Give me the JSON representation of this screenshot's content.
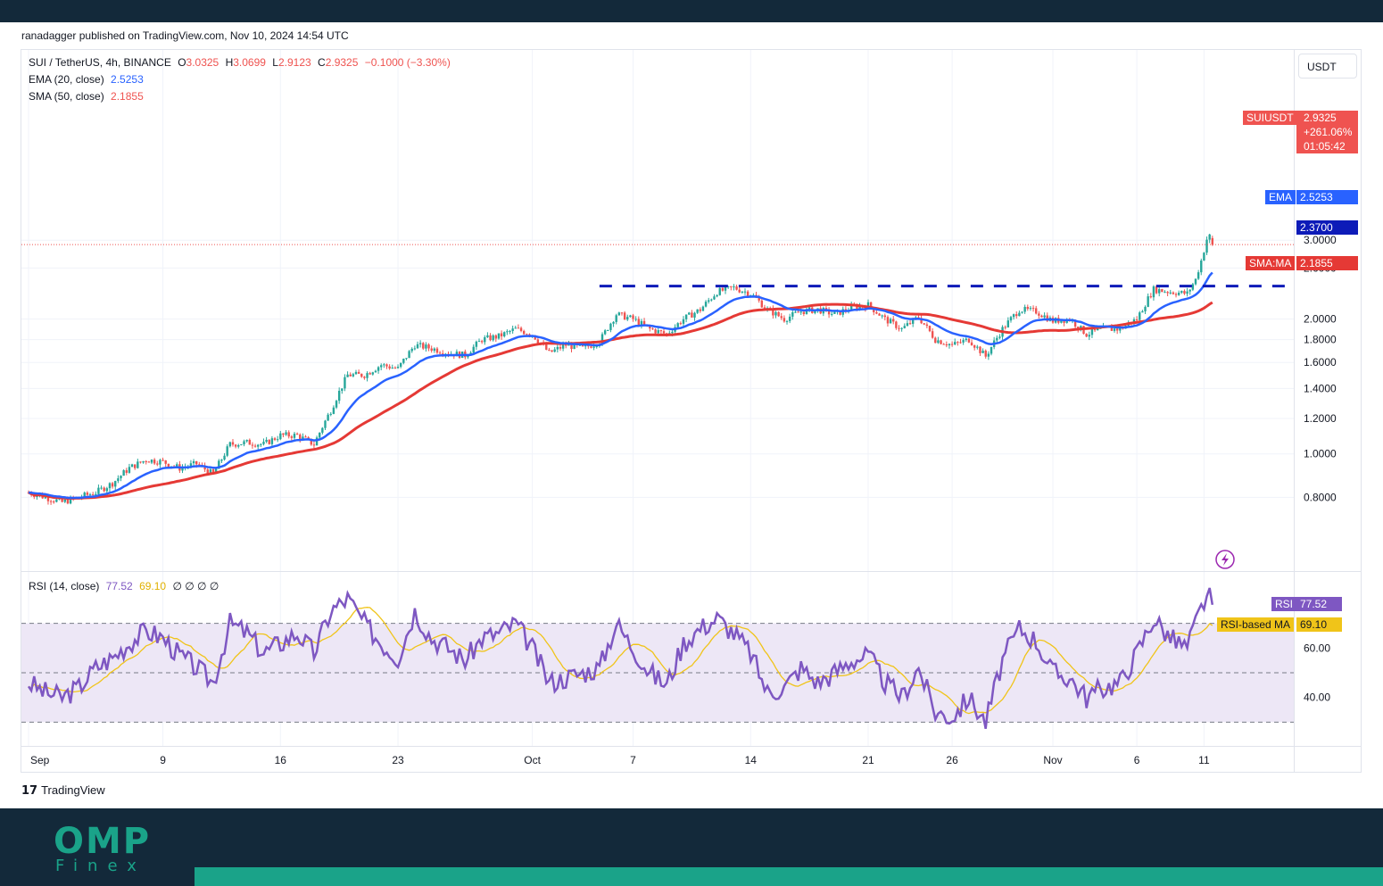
{
  "header": {
    "published": "ranadagger published on TradingView.com, Nov 10, 2024 14:54 UTC"
  },
  "legend": {
    "symbol": "SUI / TetherUS, 4h, BINANCE",
    "o_label": "O",
    "o_value": "3.0325",
    "h_label": "H",
    "h_value": "3.0699",
    "l_label": "L",
    "l_value": "2.9123",
    "c_label": "C",
    "c_value": "2.9325",
    "change": "−0.1000 (−3.30%)",
    "ema_label": "EMA (20, close)",
    "ema_value": "2.5253",
    "sma_label": "SMA (50, close)",
    "sma_value": "2.1855",
    "rsi_label": "RSI (14, close)",
    "rsi_value": "77.52",
    "rsi_ma_value": "69.10",
    "rsi_extra": "∅ ∅ ∅ ∅"
  },
  "axis": {
    "currency": "USDT"
  },
  "tags": {
    "symbol": "SUIUSDT",
    "price": "2.9325",
    "change_pct": "+261.06%",
    "countdown": "01:05:42",
    "ema_name": "EMA",
    "ema_value": "2.5253",
    "level_value": "2.3700",
    "sma_name": "SMA:MA",
    "sma_value": "2.1855",
    "rsi_name": "RSI",
    "rsi_value": "77.52",
    "rsi_ma_name": "RSI-based MA",
    "rsi_ma_value": "69.10"
  },
  "colors": {
    "up": "#26a69a",
    "down": "#ef5350",
    "ema": "#2962ff",
    "sma": "#e53935",
    "resistance": "#0d1bb8",
    "rsi": "#7e57c2",
    "rsi_ma": "#f0c419",
    "rsi_band": "#ede7f6"
  },
  "footer": {
    "tradingview": "TradingView",
    "brand_top": "OMP",
    "brand_bottom": "Finex"
  },
  "chart_data": [
    {
      "type": "candlestick",
      "title": "SUI / TetherUS, 4h, BINANCE",
      "x_ticks": [
        "Sep",
        "9",
        "16",
        "23",
        "Oct",
        "7",
        "14",
        "21",
        "26",
        "Nov",
        "6",
        "11"
      ],
      "x_tick_days": [
        0,
        8,
        15,
        22,
        30,
        36,
        43,
        50,
        55,
        61,
        66,
        70
      ],
      "ylim": [
        0.7,
        3.25
      ],
      "y_ticks": [
        0.8,
        1.0,
        1.2,
        1.4,
        1.6,
        1.8,
        2.0,
        2.6,
        3.0
      ],
      "resistance_level": 2.37,
      "resistance_start_day": 34,
      "close_path": [
        [
          0,
          0.82
        ],
        [
          1,
          0.8
        ],
        [
          2,
          0.78
        ],
        [
          3,
          0.8
        ],
        [
          4,
          0.82
        ],
        [
          5,
          0.86
        ],
        [
          6,
          0.93
        ],
        [
          7,
          0.97
        ],
        [
          8,
          0.96
        ],
        [
          9,
          0.93
        ],
        [
          10,
          0.95
        ],
        [
          11,
          0.9
        ],
        [
          12,
          1.05
        ],
        [
          13,
          1.06
        ],
        [
          14,
          1.05
        ],
        [
          15,
          1.1
        ],
        [
          16,
          1.1
        ],
        [
          17,
          1.05
        ],
        [
          18,
          1.25
        ],
        [
          19,
          1.5
        ],
        [
          20,
          1.5
        ],
        [
          21,
          1.58
        ],
        [
          22,
          1.55
        ],
        [
          23,
          1.75
        ],
        [
          24,
          1.72
        ],
        [
          25,
          1.68
        ],
        [
          26,
          1.66
        ],
        [
          27,
          1.8
        ],
        [
          28,
          1.83
        ],
        [
          29,
          1.9
        ],
        [
          30,
          1.85
        ],
        [
          31,
          1.68
        ],
        [
          32,
          1.75
        ],
        [
          33,
          1.72
        ],
        [
          34,
          1.78
        ],
        [
          35,
          2.05
        ],
        [
          36,
          2.0
        ],
        [
          37,
          1.9
        ],
        [
          38,
          1.85
        ],
        [
          39,
          2.0
        ],
        [
          40,
          2.1
        ],
        [
          41,
          2.3
        ],
        [
          42,
          2.35
        ],
        [
          43,
          2.28
        ],
        [
          44,
          2.1
        ],
        [
          45,
          2.0
        ],
        [
          46,
          2.08
        ],
        [
          47,
          2.1
        ],
        [
          48,
          2.05
        ],
        [
          49,
          2.12
        ],
        [
          50,
          2.15
        ],
        [
          51,
          2.0
        ],
        [
          52,
          1.9
        ],
        [
          53,
          2.02
        ],
        [
          54,
          1.8
        ],
        [
          55,
          1.75
        ],
        [
          56,
          1.8
        ],
        [
          57,
          1.65
        ],
        [
          58,
          1.9
        ],
        [
          59,
          2.1
        ],
        [
          60,
          2.08
        ],
        [
          61,
          1.98
        ],
        [
          62,
          2.0
        ],
        [
          63,
          1.85
        ],
        [
          64,
          1.9
        ],
        [
          65,
          1.9
        ],
        [
          66,
          2.0
        ],
        [
          67,
          2.33
        ],
        [
          68,
          2.3
        ],
        [
          69,
          2.28
        ],
        [
          69.5,
          2.45
        ],
        [
          69.9,
          2.75
        ],
        [
          70.25,
          3.1
        ],
        [
          70.6,
          2.93
        ]
      ],
      "ema20_last": 2.5253,
      "sma50_last": 2.1855,
      "last_close": 2.9325
    },
    {
      "type": "line",
      "title": "RSI (14, close)",
      "ylim": [
        20,
        90
      ],
      "y_ticks": [
        40.0,
        60.0
      ],
      "band": [
        30,
        70
      ],
      "mid_line": 50,
      "rsi_last": 77.52,
      "rsi_ma_last": 69.1,
      "rsi_path": [
        [
          0,
          46
        ],
        [
          1,
          42
        ],
        [
          2,
          40
        ],
        [
          3,
          44
        ],
        [
          4,
          52
        ],
        [
          5,
          56
        ],
        [
          6,
          62
        ],
        [
          7,
          67
        ],
        [
          8,
          64
        ],
        [
          9,
          57
        ],
        [
          10,
          52
        ],
        [
          11,
          46
        ],
        [
          12,
          70
        ],
        [
          13,
          66
        ],
        [
          14,
          58
        ],
        [
          15,
          62
        ],
        [
          16,
          66
        ],
        [
          17,
          58
        ],
        [
          18,
          75
        ],
        [
          19,
          80
        ],
        [
          20,
          70
        ],
        [
          21,
          62
        ],
        [
          22,
          56
        ],
        [
          23,
          75
        ],
        [
          24,
          64
        ],
        [
          25,
          60
        ],
        [
          26,
          55
        ],
        [
          27,
          64
        ],
        [
          28,
          66
        ],
        [
          29,
          70
        ],
        [
          30,
          60
        ],
        [
          31,
          46
        ],
        [
          32,
          48
        ],
        [
          33,
          50
        ],
        [
          34,
          52
        ],
        [
          35,
          70
        ],
        [
          36,
          60
        ],
        [
          37,
          50
        ],
        [
          38,
          45
        ],
        [
          39,
          62
        ],
        [
          40,
          68
        ],
        [
          41,
          72
        ],
        [
          42,
          66
        ],
        [
          43,
          58
        ],
        [
          44,
          42
        ],
        [
          45,
          44
        ],
        [
          46,
          52
        ],
        [
          47,
          46
        ],
        [
          48,
          50
        ],
        [
          49,
          55
        ],
        [
          50,
          57
        ],
        [
          51,
          46
        ],
        [
          52,
          40
        ],
        [
          53,
          52
        ],
        [
          54,
          34
        ],
        [
          55,
          32
        ],
        [
          56,
          40
        ],
        [
          57,
          30
        ],
        [
          58,
          55
        ],
        [
          59,
          68
        ],
        [
          60,
          63
        ],
        [
          61,
          50
        ],
        [
          62,
          48
        ],
        [
          63,
          40
        ],
        [
          64,
          44
        ],
        [
          65,
          46
        ],
        [
          66,
          58
        ],
        [
          67,
          72
        ],
        [
          68,
          64
        ],
        [
          69,
          60
        ],
        [
          69.6,
          72
        ],
        [
          70.2,
          82
        ],
        [
          70.6,
          77.52
        ]
      ]
    }
  ]
}
